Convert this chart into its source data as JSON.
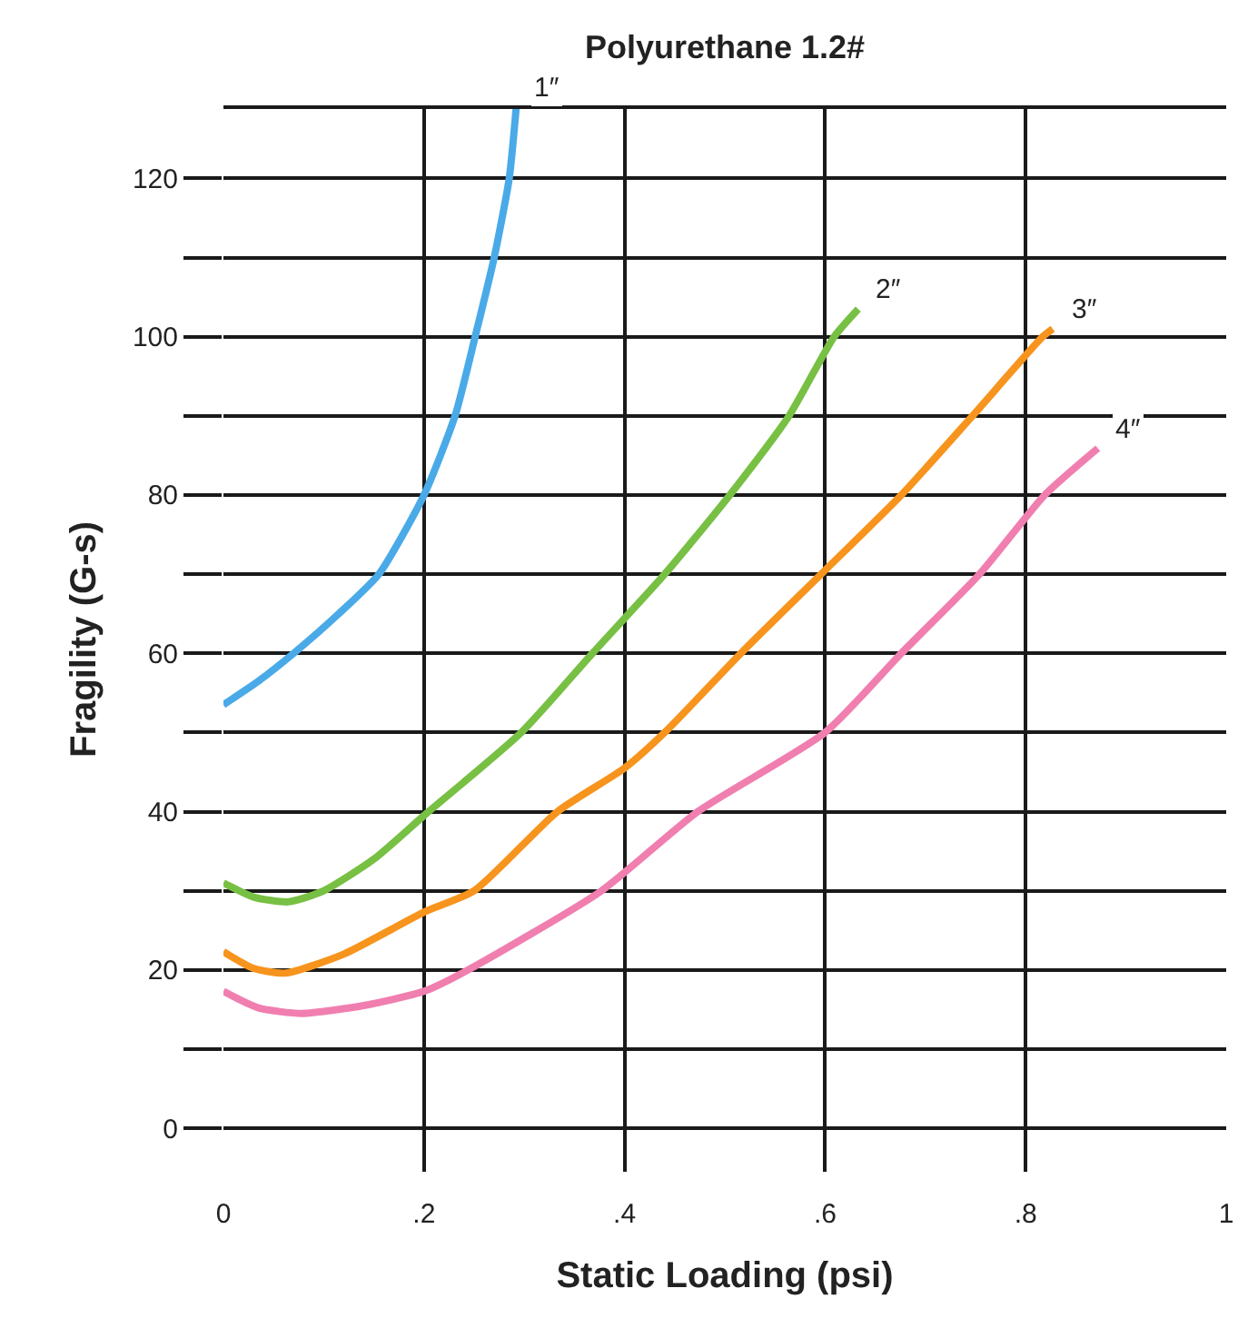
{
  "chart_data": {
    "type": "line",
    "title": "Polyurethane 1.2#",
    "xlabel": "Static Loading (psi)",
    "ylabel": "Fragility (G-s)",
    "xlim": [
      0,
      1
    ],
    "ylim": [
      -5.5,
      129
    ],
    "xticks": [
      0,
      {
        "value": 0.2,
        "label": ".2"
      },
      {
        "value": 0.4,
        "label": ".4"
      },
      {
        "value": 0.6,
        "label": ".6"
      },
      {
        "value": 0.8,
        "label": ".8"
      },
      1
    ],
    "yticks": [
      0,
      {
        "value": 10,
        "label": null
      },
      20,
      {
        "value": 30,
        "label": null
      },
      40,
      {
        "value": 50,
        "label": null
      },
      60,
      {
        "value": 70,
        "label": null
      },
      80,
      {
        "value": 90,
        "label": null
      },
      100,
      {
        "value": 110,
        "label": null
      },
      120
    ],
    "grid": true,
    "legend": false,
    "marker": "none",
    "line_style": "solid",
    "series": [
      {
        "name": "1″",
        "color": "#4aaae8",
        "x": [
          0,
          0.035,
          0.07,
          0.115,
          0.155,
          0.2,
          0.231,
          0.251,
          0.27,
          0.285,
          0.292
        ],
        "values": [
          53.5,
          56.5,
          60,
          65,
          70,
          80,
          90,
          100,
          110,
          120,
          129
        ]
      },
      {
        "name": "2″",
        "color": "#77c043",
        "x": [
          0,
          0.03,
          0.065,
          0.1,
          0.15,
          0.2,
          0.297,
          0.368,
          0.44,
          0.505,
          0.564,
          0.609,
          0.633
        ],
        "values": [
          31,
          29.2,
          28.6,
          30,
          34,
          39.5,
          50,
          60,
          70,
          80,
          90,
          100,
          103.5
        ]
      },
      {
        "name": "3″",
        "color": "#f7941d",
        "x": [
          0,
          0.03,
          0.062,
          0.12,
          0.2,
          0.25,
          0.333,
          0.4,
          0.44,
          0.516,
          0.596,
          0.676,
          0.747,
          0.817,
          0.827
        ],
        "values": [
          22.3,
          20.2,
          19.6,
          22,
          27.3,
          30,
          40,
          45.5,
          50,
          60,
          70,
          80,
          90,
          100,
          101
        ]
      },
      {
        "name": "4″",
        "color": "#f07fb0",
        "x": [
          0,
          0.035,
          0.078,
          0.14,
          0.2,
          0.244,
          0.377,
          0.473,
          0.6,
          0.676,
          0.754,
          0.819,
          0.872
        ],
        "values": [
          17.3,
          15.2,
          14.5,
          15.5,
          17.3,
          20,
          30,
          40,
          50,
          60,
          70,
          80,
          85.9
        ]
      }
    ]
  }
}
